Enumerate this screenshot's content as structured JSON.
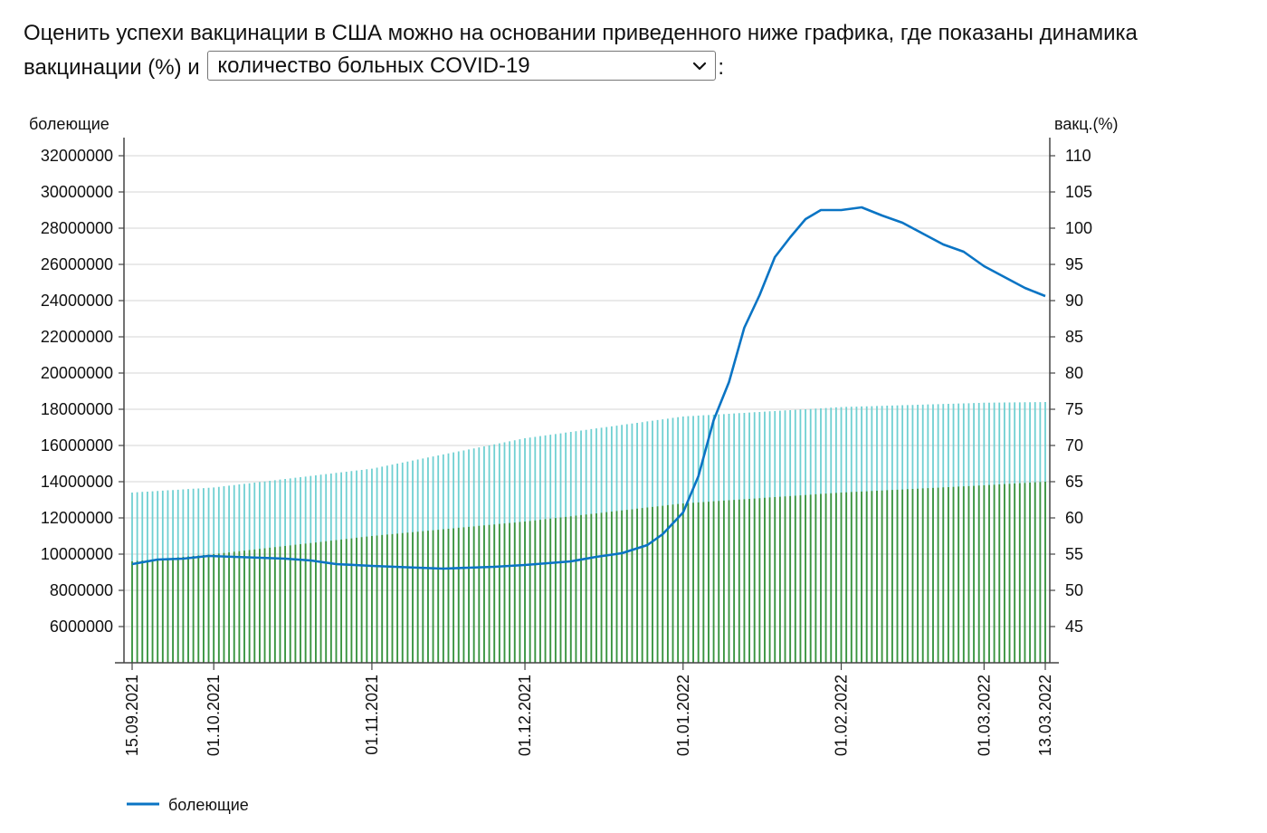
{
  "intro": {
    "text_before": "Оценить успехи вакцинации в США можно на основании приведенного ниже графика, где показаны динамика вакцинации (%) и ",
    "text_after": ":",
    "select_value": "количество больных COVID-19",
    "select_icon": "chevron-down-icon"
  },
  "colors": {
    "line": "#0a74c4",
    "bars_full": "#6fd0d2",
    "bars_partial": "#3c933c",
    "grid": "#d4d4d4",
    "axis": "#444444"
  },
  "chart_data": {
    "type": "bar+line",
    "left_axis_label": "болеющие",
    "right_axis_label": "вакц.(%)",
    "left_ylim": [
      4000000,
      33000000
    ],
    "left_ticks": [
      6000000,
      8000000,
      10000000,
      12000000,
      14000000,
      16000000,
      18000000,
      20000000,
      22000000,
      24000000,
      26000000,
      28000000,
      30000000,
      32000000
    ],
    "right_ylim": [
      40,
      112.5
    ],
    "right_ticks": [
      45,
      50,
      55,
      60,
      65,
      70,
      75,
      80,
      85,
      90,
      95,
      100,
      105,
      110
    ],
    "x_start": "15.09.2021",
    "x_end": "13.03.2022",
    "x_tick_labels": [
      "15.09.2021",
      "01.10.2021",
      "01.11.2021",
      "01.12.2021",
      "01.01.2022",
      "01.02.2022",
      "01.03.2022",
      "13.03.2022"
    ],
    "grid": "horizontal",
    "legend_position": "bottom-left",
    "series": [
      {
        "name": "болеющие",
        "kind": "line",
        "axis": "left",
        "points": [
          [
            "15.09.2021",
            9450000
          ],
          [
            "20.09.2021",
            9700000
          ],
          [
            "25.09.2021",
            9750000
          ],
          [
            "30.09.2021",
            9900000
          ],
          [
            "05.10.2021",
            9850000
          ],
          [
            "10.10.2021",
            9800000
          ],
          [
            "15.10.2021",
            9750000
          ],
          [
            "20.10.2021",
            9650000
          ],
          [
            "25.10.2021",
            9450000
          ],
          [
            "01.11.2021",
            9350000
          ],
          [
            "10.11.2021",
            9250000
          ],
          [
            "15.11.2021",
            9200000
          ],
          [
            "20.11.2021",
            9250000
          ],
          [
            "25.11.2021",
            9300000
          ],
          [
            "01.12.2021",
            9400000
          ],
          [
            "10.12.2021",
            9600000
          ],
          [
            "15.12.2021",
            9850000
          ],
          [
            "20.12.2021",
            10050000
          ],
          [
            "25.12.2021",
            10500000
          ],
          [
            "28.12.2021",
            11100000
          ],
          [
            "01.01.2022",
            12300000
          ],
          [
            "04.01.2022",
            14300000
          ],
          [
            "07.01.2022",
            17400000
          ],
          [
            "10.01.2022",
            19500000
          ],
          [
            "13.01.2022",
            22500000
          ],
          [
            "16.01.2022",
            24300000
          ],
          [
            "19.01.2022",
            26400000
          ],
          [
            "22.01.2022",
            27500000
          ],
          [
            "25.01.2022",
            28500000
          ],
          [
            "28.01.2022",
            29000000
          ],
          [
            "01.02.2022",
            29000000
          ],
          [
            "05.02.2022",
            29150000
          ],
          [
            "09.02.2022",
            28700000
          ],
          [
            "13.02.2022",
            28300000
          ],
          [
            "17.02.2022",
            27700000
          ],
          [
            "21.02.2022",
            27100000
          ],
          [
            "25.02.2022",
            26700000
          ],
          [
            "01.03.2022",
            25900000
          ],
          [
            "05.03.2022",
            25300000
          ],
          [
            "09.03.2022",
            24700000
          ],
          [
            "13.03.2022",
            24250000
          ]
        ]
      },
      {
        "kind": "bar",
        "axis": "right",
        "color_key": "bars_full",
        "points": [
          [
            "15.09.2021",
            63.5
          ],
          [
            "01.10.2021",
            64.2
          ],
          [
            "01.11.2021",
            66.8
          ],
          [
            "01.12.2021",
            71.0
          ],
          [
            "01.01.2022",
            74.0
          ],
          [
            "01.02.2022",
            75.3
          ],
          [
            "01.03.2022",
            75.9
          ],
          [
            "13.03.2022",
            76.0
          ]
        ]
      },
      {
        "kind": "bar",
        "axis": "right",
        "color_key": "bars_partial",
        "points": [
          [
            "15.09.2021",
            54.0
          ],
          [
            "01.10.2021",
            55.0
          ],
          [
            "01.11.2021",
            57.5
          ],
          [
            "01.12.2021",
            59.5
          ],
          [
            "01.01.2022",
            62.0
          ],
          [
            "01.02.2022",
            63.5
          ],
          [
            "01.03.2022",
            64.5
          ],
          [
            "13.03.2022",
            65.0
          ]
        ]
      }
    ]
  }
}
